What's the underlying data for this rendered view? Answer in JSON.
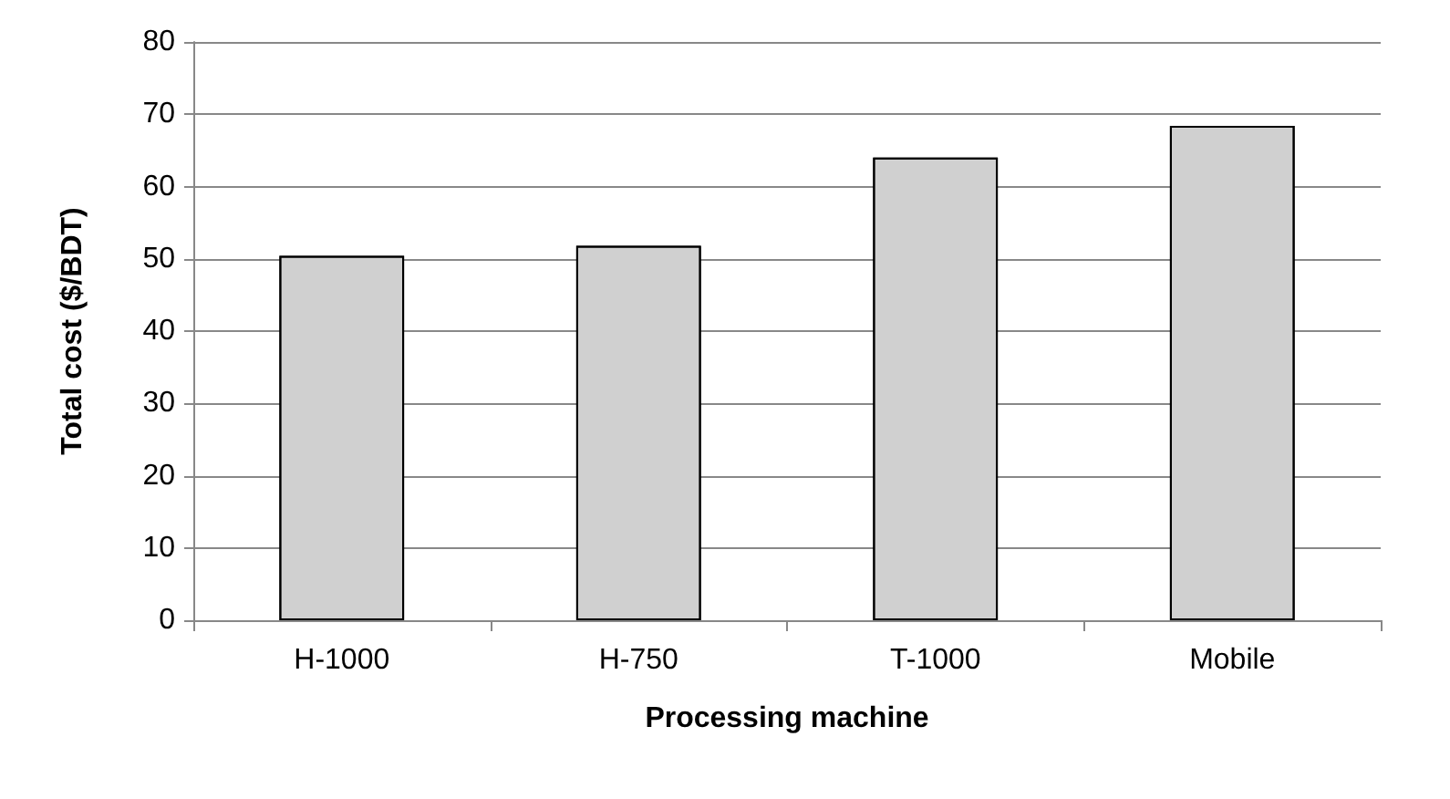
{
  "chart_data": {
    "type": "bar",
    "xlabel": "Processing machine",
    "ylabel": "Total cost ($/BDT)",
    "categories": [
      "H-1000",
      "H-750",
      "T-1000",
      "Mobile"
    ],
    "values": [
      50.4,
      51.8,
      64,
      68.4
    ],
    "color": "#d0d0d0",
    "ylim": [
      0,
      80
    ],
    "yticks": [
      0,
      10,
      20,
      30,
      40,
      50,
      60,
      70,
      80
    ],
    "grid": "y"
  }
}
